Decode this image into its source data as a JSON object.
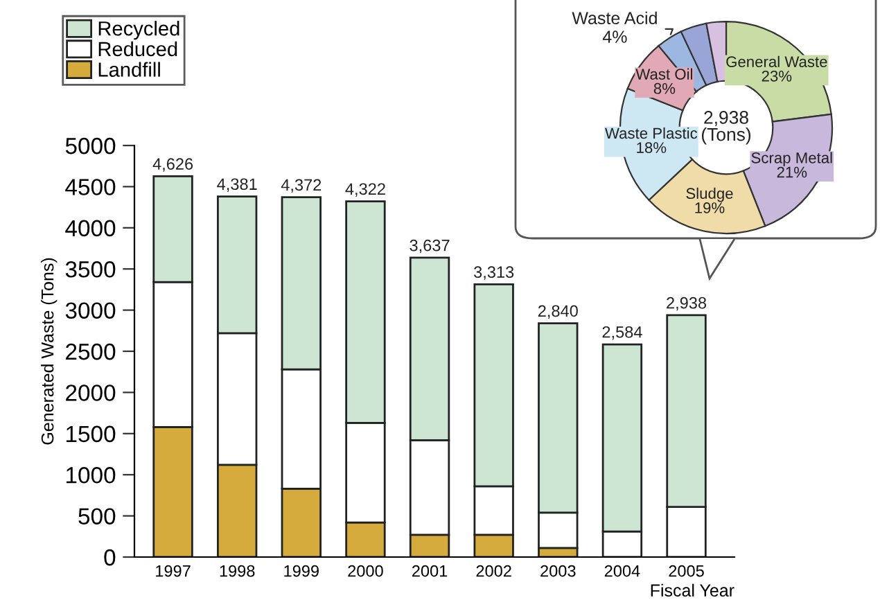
{
  "chart_data": [
    {
      "type": "bar",
      "stacked": true,
      "xlabel": "Fiscal Year",
      "ylabel": "Generated Waste (Tons)",
      "categories": [
        "1997",
        "1998",
        "1999",
        "2000",
        "2001",
        "2002",
        "2003",
        "2004",
        "2005"
      ],
      "series": [
        {
          "name": "Landfill",
          "color": "#d4ab3c",
          "values": [
            1580,
            1120,
            830,
            420,
            270,
            270,
            110,
            0,
            0
          ]
        },
        {
          "name": "Reduced",
          "color": "#ffffff",
          "values": [
            1760,
            1600,
            1450,
            1210,
            1150,
            590,
            430,
            310,
            610
          ]
        },
        {
          "name": "Recycled",
          "color": "#cde6d4",
          "values": [
            1286,
            1661,
            2092,
            2692,
            2217,
            2453,
            2300,
            2274,
            2328
          ]
        }
      ],
      "totals": [
        "4,626",
        "4,381",
        "4,372",
        "4,322",
        "3,637",
        "3,313",
        "2,840",
        "2,584",
        "2,938"
      ],
      "ylim": [
        0,
        5000
      ],
      "yticks": [
        0,
        500,
        1000,
        1500,
        2000,
        2500,
        3000,
        3500,
        4000,
        4500,
        5000
      ],
      "grid": false,
      "legend": "top left"
    },
    {
      "type": "donut",
      "categories": [
        "General Waste",
        "Scrap Metal",
        "Sludge",
        "Waste Plastic",
        "Wast Oil",
        "Waste Acid",
        null,
        null
      ],
      "values": [
        23,
        21,
        19,
        18,
        8,
        4,
        4,
        3
      ],
      "colors": [
        "#c9dca6",
        "#c7b8dc",
        "#f0dca8",
        "#cde8f2",
        "#e0a9b5",
        "#9db8e0",
        "#99a5d6",
        "#d8c0e0"
      ],
      "value_labels": [
        "23%",
        "21%",
        "19%",
        "18%",
        "8%",
        "4%",
        null,
        null
      ],
      "annotations": [
        "2,938\n(Tons)"
      ]
    }
  ]
}
